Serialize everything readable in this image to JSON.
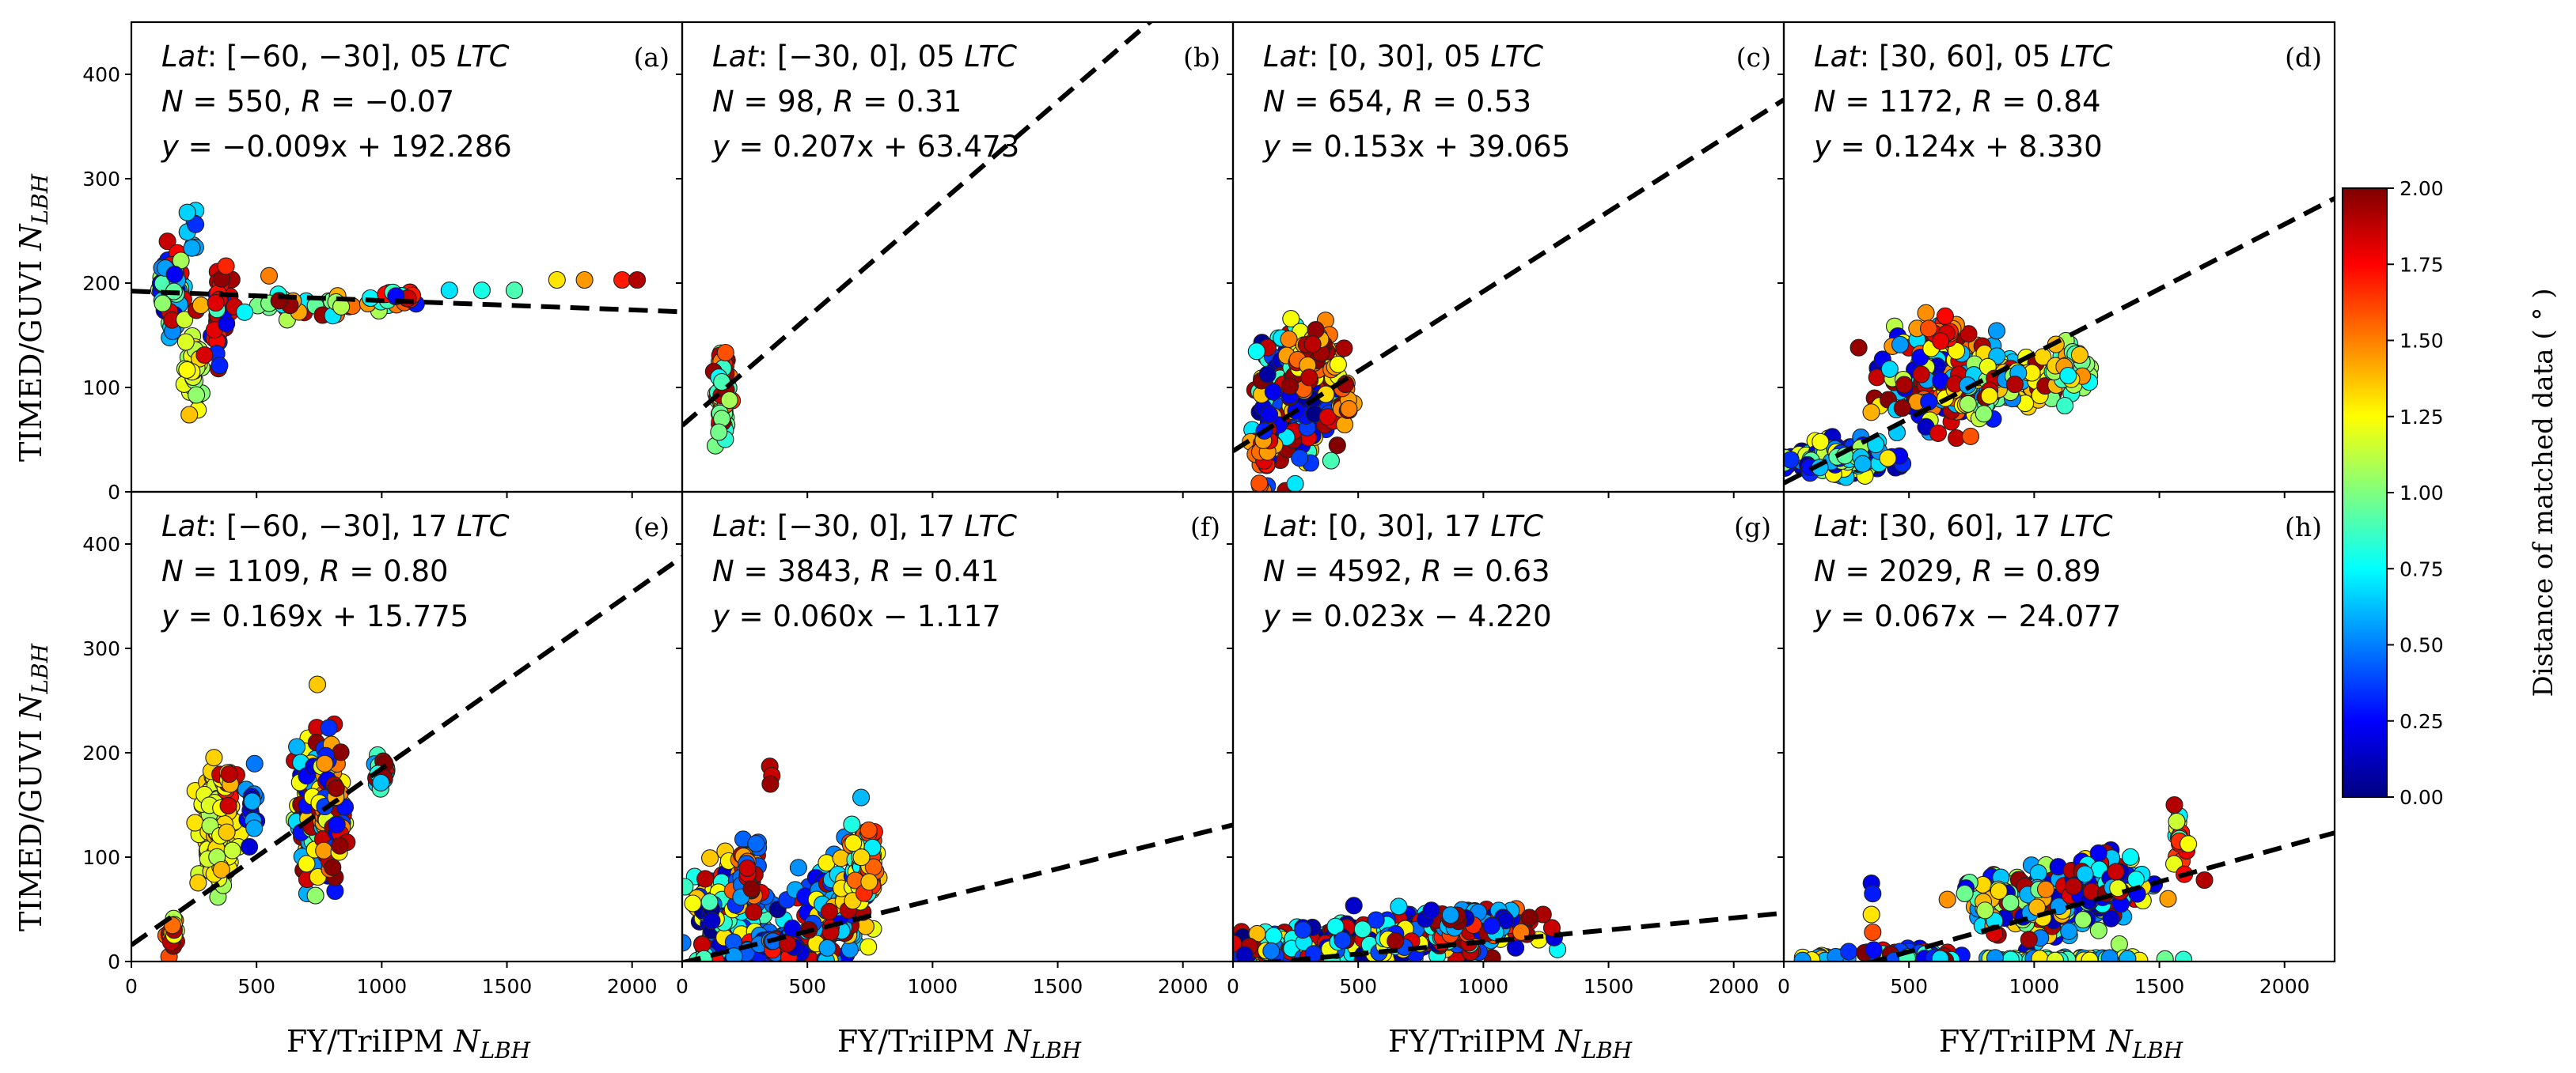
{
  "figure": {
    "y_axis_title": "TIMED/GUVI",
    "y_axis_title_var": "N",
    "y_axis_title_sub": "LBH",
    "x_axis_title": "FY/TriIPM",
    "x_axis_title_var": "N",
    "x_axis_title_sub": "LBH",
    "x_ticks": [
      0,
      500,
      1000,
      1500,
      2000
    ],
    "y_ticks": [
      0,
      100,
      200,
      300,
      400
    ],
    "xlim": [
      0,
      2200
    ],
    "ylim": [
      0,
      450
    ]
  },
  "colorbar": {
    "label": "Distance of matched data ( ° )",
    "range": [
      0,
      2
    ],
    "ticks": [
      "0.00",
      "0.25",
      "0.50",
      "0.75",
      "1.00",
      "1.25",
      "1.50",
      "1.75",
      "2.00"
    ],
    "colormap": [
      "#00007f",
      "#0000ff",
      "#007fff",
      "#00ffff",
      "#7fff7f",
      "#ffff00",
      "#ff7f00",
      "#ff0000",
      "#7f0000"
    ]
  },
  "chart_data": [
    {
      "type": "scatter",
      "panel": "(a)",
      "lat_text": "[−60, −30],",
      "ltc_text": "05",
      "n_text": "550,",
      "r_text": "−0.07",
      "eq_text": "= −0.009x  + 192.286",
      "fit": {
        "slope": -0.009,
        "intercept": 192.286
      },
      "clusters": [
        {
          "x": 160,
          "y": 195,
          "sx": 25,
          "sy": 18,
          "n": 90,
          "cmix": [
            0.2,
            0.6,
            1.0,
            1.8
          ]
        },
        {
          "x": 240,
          "y": 250,
          "sx": 15,
          "sy": 15,
          "n": 8,
          "cmix": [
            0.3,
            0.6
          ]
        },
        {
          "x": 250,
          "y": 120,
          "sx": 18,
          "sy": 20,
          "n": 40,
          "cmix": [
            1.2,
            1.3,
            1.1
          ]
        },
        {
          "x": 360,
          "y": 165,
          "sx": 20,
          "sy": 22,
          "n": 40,
          "cmix": [
            1.9,
            1.7,
            0.3
          ]
        },
        {
          "x": 700,
          "y": 178,
          "sx": 200,
          "sy": 5,
          "n": 40,
          "cmix": [
            0.8,
            1.0,
            1.5,
            1.9
          ]
        },
        {
          "x": 1050,
          "y": 188,
          "sx": 60,
          "sy": 4,
          "n": 20,
          "cmix": [
            0.3,
            0.8,
            1.8
          ]
        }
      ],
      "points": [
        {
          "x": 550,
          "y": 207,
          "c": 1.5
        },
        {
          "x": 1400,
          "y": 193,
          "c": 0.8
        },
        {
          "x": 1530,
          "y": 193,
          "c": 0.9
        },
        {
          "x": 1700,
          "y": 203,
          "c": 1.3
        },
        {
          "x": 1810,
          "y": 203,
          "c": 1.45
        },
        {
          "x": 1960,
          "y": 203,
          "c": 1.7
        },
        {
          "x": 2020,
          "y": 203,
          "c": 1.9
        },
        {
          "x": 1270,
          "y": 193,
          "c": 0.7
        }
      ]
    },
    {
      "type": "scatter",
      "panel": "(b)",
      "lat_text": "[−30, 0],",
      "ltc_text": "05",
      "n_text": "98,",
      "r_text": "0.31",
      "eq_text": "= 0.207x  + 63.473",
      "fit": {
        "slope": 0.207,
        "intercept": 63.473
      },
      "clusters": [
        {
          "x": 160,
          "y": 95,
          "sx": 12,
          "sy": 20,
          "n": 90,
          "cmix": [
            1.9,
            1.6,
            1.0,
            0.8
          ]
        }
      ],
      "points": []
    },
    {
      "type": "scatter",
      "panel": "(c)",
      "lat_text": "[0, 30],",
      "ltc_text": "05",
      "n_text": "654,",
      "r_text": "0.53",
      "eq_text": "= 0.153x  + 39.065",
      "fit": {
        "slope": 0.153,
        "intercept": 39.065
      },
      "clusters": [
        {
          "x": 250,
          "y": 95,
          "sx": 70,
          "sy": 30,
          "n": 260,
          "cmix": [
            0.1,
            0.3,
            1.9,
            1.3,
            0.8
          ]
        },
        {
          "x": 320,
          "y": 130,
          "sx": 60,
          "sy": 15,
          "n": 50,
          "cmix": [
            1.9,
            1.5,
            1.3
          ]
        },
        {
          "x": 130,
          "y": 40,
          "sx": 20,
          "sy": 20,
          "n": 40,
          "cmix": [
            1.5,
            1.8,
            0.3
          ]
        },
        {
          "x": 450,
          "y": 85,
          "sx": 20,
          "sy": 12,
          "n": 15,
          "cmix": [
            1.5,
            1.9
          ]
        }
      ],
      "points": []
    },
    {
      "type": "scatter",
      "panel": "(d)",
      "lat_text": "[30, 60],",
      "ltc_text": "05",
      "n_text": "1172,",
      "r_text": "0.84",
      "eq_text": "= 0.124x  + 8.330",
      "fit": {
        "slope": 0.124,
        "intercept": 8.33
      },
      "clusters": [
        {
          "x": 230,
          "y": 32,
          "sx": 90,
          "sy": 7,
          "n": 220,
          "cmix": [
            0.1,
            0.3,
            0.6,
            1.0,
            1.2
          ]
        },
        {
          "x": 630,
          "y": 110,
          "sx": 110,
          "sy": 22,
          "n": 180,
          "cmix": [
            1.9,
            1.5,
            0.6,
            1.2,
            0.2
          ]
        },
        {
          "x": 900,
          "y": 105,
          "sx": 100,
          "sy": 14,
          "n": 140,
          "cmix": [
            0.6,
            1.0,
            1.9,
            1.3
          ]
        },
        {
          "x": 1150,
          "y": 115,
          "sx": 45,
          "sy": 12,
          "n": 50,
          "cmix": [
            1.0,
            1.4,
            0.8
          ]
        },
        {
          "x": 650,
          "y": 155,
          "sx": 30,
          "sy": 10,
          "n": 15,
          "cmix": [
            1.8,
            1.5
          ]
        }
      ],
      "points": []
    },
    {
      "type": "scatter",
      "panel": "(e)",
      "lat_text": "[−60, −30],",
      "ltc_text": "17",
      "n_text": "1109,",
      "r_text": "0.80",
      "eq_text": "= 0.169x  + 15.775",
      "fit": {
        "slope": 0.169,
        "intercept": 15.775
      },
      "clusters": [
        {
          "x": 160,
          "y": 27,
          "sx": 12,
          "sy": 8,
          "n": 25,
          "cmix": [
            1.9,
            1.6,
            1.2
          ]
        },
        {
          "x": 340,
          "y": 125,
          "sx": 35,
          "sy": 25,
          "n": 120,
          "cmix": [
            1.25,
            1.3,
            1.15
          ]
        },
        {
          "x": 390,
          "y": 170,
          "sx": 12,
          "sy": 12,
          "n": 20,
          "cmix": [
            1.8,
            1.3
          ]
        },
        {
          "x": 480,
          "y": 140,
          "sx": 10,
          "sy": 15,
          "n": 15,
          "cmix": [
            0.2,
            0.5
          ]
        },
        {
          "x": 730,
          "y": 140,
          "sx": 35,
          "sy": 35,
          "n": 130,
          "cmix": [
            0.2,
            0.6,
            1.0,
            1.3,
            1.9
          ]
        },
        {
          "x": 800,
          "y": 150,
          "sx": 25,
          "sy": 30,
          "n": 100,
          "cmix": [
            1.9,
            1.5,
            0.3,
            1.2
          ]
        },
        {
          "x": 1000,
          "y": 183,
          "sx": 15,
          "sy": 6,
          "n": 25,
          "cmix": [
            0.6,
            0.8,
            1.9
          ]
        }
      ],
      "points": []
    },
    {
      "type": "scatter",
      "panel": "(f)",
      "lat_text": "[−30, 0],",
      "ltc_text": "17",
      "n_text": "3843,",
      "r_text": "0.41",
      "eq_text": "= 0.060x  − 1.117",
      "fit": {
        "slope": 0.06,
        "intercept": -1.117
      },
      "clusters": [
        {
          "x": 200,
          "y": 40,
          "sx": 80,
          "sy": 25,
          "n": 230,
          "cmix": [
            0.1,
            0.4,
            0.8,
            1.3,
            1.8
          ]
        },
        {
          "x": 270,
          "y": 85,
          "sx": 25,
          "sy": 15,
          "n": 50,
          "cmix": [
            1.5,
            0.5,
            1.9
          ]
        },
        {
          "x": 400,
          "y": 15,
          "sx": 80,
          "sy": 5,
          "n": 90,
          "cmix": [
            0.2,
            0.5,
            1.8
          ]
        },
        {
          "x": 600,
          "y": 50,
          "sx": 60,
          "sy": 25,
          "n": 160,
          "cmix": [
            1.3,
            1.9,
            0.6,
            0.3
          ]
        },
        {
          "x": 730,
          "y": 90,
          "sx": 25,
          "sy": 18,
          "n": 80,
          "cmix": [
            1.3,
            0.8,
            1.6
          ]
        }
      ],
      "points": [
        {
          "x": 350,
          "y": 187,
          "c": 1.9
        },
        {
          "x": 358,
          "y": 178,
          "c": 1.85
        },
        {
          "x": 352,
          "y": 170,
          "c": 1.95
        }
      ]
    },
    {
      "type": "scatter",
      "panel": "(g)",
      "lat_text": "[0, 30],",
      "ltc_text": "17",
      "n_text": "4592,",
      "r_text": "0.63",
      "eq_text": "= 0.023x  − 4.220",
      "fit": {
        "slope": 0.023,
        "intercept": -4.22
      },
      "clusters": [
        {
          "x": 300,
          "y": 15,
          "sx": 180,
          "sy": 7,
          "n": 300,
          "cmix": [
            0.1,
            0.4,
            0.8,
            1.3,
            1.9
          ]
        },
        {
          "x": 750,
          "y": 25,
          "sx": 180,
          "sy": 10,
          "n": 260,
          "cmix": [
            0.1,
            0.4,
            0.8,
            1.3,
            1.9
          ]
        },
        {
          "x": 1000,
          "y": 38,
          "sx": 100,
          "sy": 7,
          "n": 120,
          "cmix": [
            1.6,
            1.9,
            0.6,
            0.2
          ]
        }
      ],
      "points": []
    },
    {
      "type": "scatter",
      "panel": "(h)",
      "lat_text": "[30, 60],",
      "ltc_text": "17",
      "n_text": "2029,",
      "r_text": "0.89",
      "eq_text": "= 0.067x  − 24.077",
      "fit": {
        "slope": 0.067,
        "intercept": -24.077
      },
      "clusters": [
        {
          "x": 150,
          "y": 3,
          "sx": 50,
          "sy": 2,
          "n": 20,
          "cmix": [
            1.3,
            0.6
          ]
        },
        {
          "x": 500,
          "y": 6,
          "sx": 80,
          "sy": 4,
          "n": 40,
          "cmix": [
            1.9,
            0.3,
            0.8
          ]
        },
        {
          "x": 1000,
          "y": 55,
          "sx": 150,
          "sy": 15,
          "n": 220,
          "cmix": [
            0.2,
            0.6,
            1.0,
            1.4,
            1.9
          ]
        },
        {
          "x": 1300,
          "y": 78,
          "sx": 80,
          "sy": 12,
          "n": 120,
          "cmix": [
            0.2,
            0.7,
            1.3,
            1.9
          ]
        },
        {
          "x": 1100,
          "y": 2,
          "sx": 200,
          "sy": 1,
          "n": 60,
          "cmix": [
            0.9,
            1.2,
            0.6
          ]
        },
        {
          "x": 1580,
          "y": 110,
          "sx": 20,
          "sy": 20,
          "n": 20,
          "cmix": [
            1.2,
            1.7,
            0.8
          ]
        }
      ],
      "points": [
        {
          "x": 350,
          "y": 75,
          "c": 0.2
        },
        {
          "x": 355,
          "y": 65,
          "c": 0.3
        },
        {
          "x": 350,
          "y": 45,
          "c": 1.3
        },
        {
          "x": 355,
          "y": 28,
          "c": 1.6
        },
        {
          "x": 1680,
          "y": 78,
          "c": 1.9
        },
        {
          "x": 1560,
          "y": 150,
          "c": 1.9
        }
      ]
    }
  ]
}
